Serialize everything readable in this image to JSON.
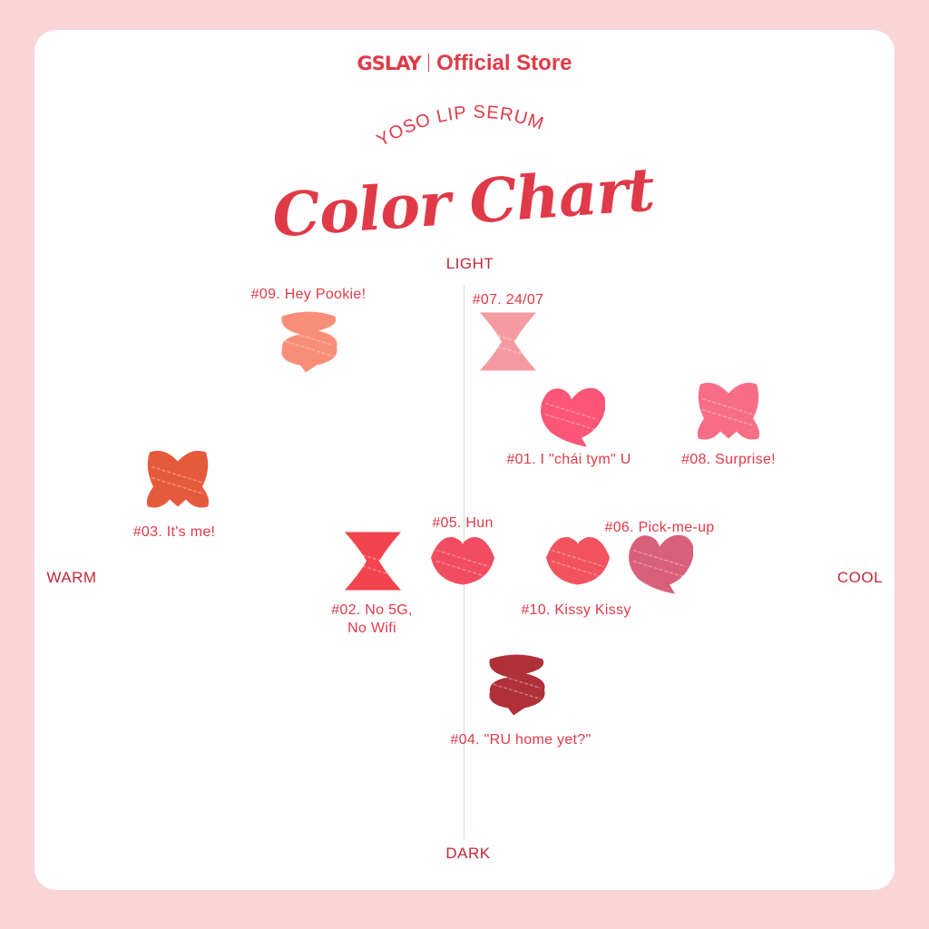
{
  "header": {
    "brand": "GSLAY",
    "store": "Official Store"
  },
  "subtitle": "YOSO LIP SERUM",
  "title": "Color Chart",
  "axes": {
    "top": "LIGHT",
    "bottom": "DARK",
    "left": "WARM",
    "right": "COOL"
  },
  "shades": [
    {
      "label": "#09. Hey Pookie!",
      "color": "#f98e78",
      "shape": "wave"
    },
    {
      "label": "#07. 24/07",
      "color": "#f59aa0",
      "shape": "hourglass"
    },
    {
      "label": "#01. I \"chái tym\" U",
      "color": "#fb5577",
      "shape": "heart"
    },
    {
      "label": "#08. Surprise!",
      "color": "#f76d85",
      "shape": "bow"
    },
    {
      "label": "#03. It's me!",
      "color": "#e65a3c",
      "shape": "bow"
    },
    {
      "label": "#02. No 5G,",
      "label2": "No Wifi",
      "color": "#f2434e",
      "shape": "hourglass"
    },
    {
      "label": "#05. Hun",
      "color": "#f24c62",
      "shape": "lips"
    },
    {
      "label": "#10. Kissy Kissy",
      "color": "#f3525f",
      "shape": "lips"
    },
    {
      "label": "#06. Pick-me-up",
      "color": "#d9607a",
      "shape": "heart"
    },
    {
      "label": "#04. \"RU home yet?\"",
      "color": "#b0303a",
      "shape": "wave"
    }
  ],
  "colors": {
    "accent": "#e03a48",
    "background": "#f9d5d8"
  }
}
